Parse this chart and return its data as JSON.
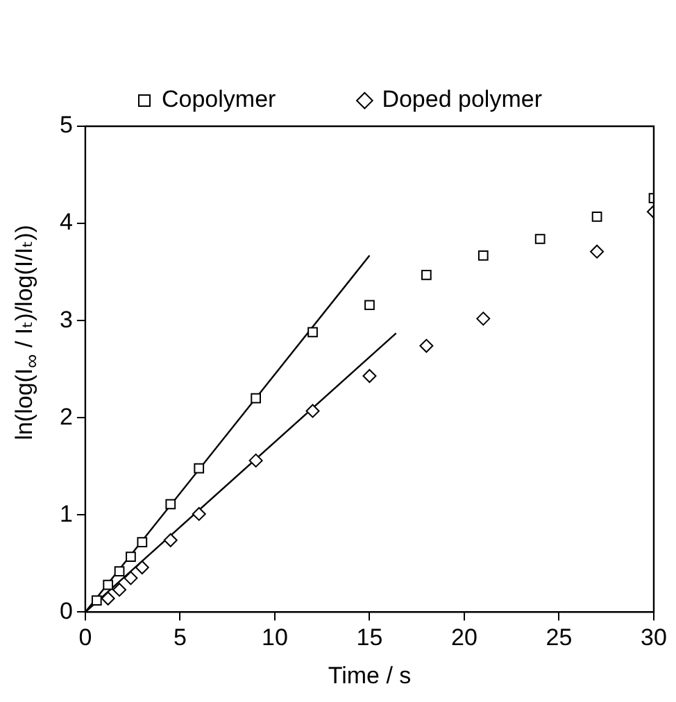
{
  "chart_data": {
    "type": "scatter",
    "xlabel": "Time / s",
    "ylabel": "ln(log(I$_{∞}$ / Iₜ)/log(I/Iₜ))",
    "xlim": [
      0,
      30
    ],
    "ylim": [
      0,
      5
    ],
    "xticks": [
      0,
      5,
      10,
      15,
      20,
      25,
      30
    ],
    "yticks": [
      0,
      1,
      2,
      3,
      4,
      5
    ],
    "legend": "top",
    "series": [
      {
        "name": "Copolymer",
        "color": "#000000",
        "marker": "square",
        "x": [
          0.6,
          1.2,
          1.8,
          2.4,
          3.0,
          4.5,
          6.0,
          9,
          12,
          15,
          18,
          21,
          24,
          27,
          30
        ],
        "values": [
          0.12,
          0.28,
          0.42,
          0.57,
          0.72,
          1.11,
          1.48,
          2.2,
          2.88,
          3.16,
          3.47,
          3.67,
          3.84,
          4.07,
          4.26
        ]
      },
      {
        "name": "Doped polymer",
        "color": "#000000",
        "marker": "diamond",
        "x": [
          1.2,
          1.8,
          2.4,
          3.0,
          4.5,
          6.0,
          9,
          12,
          15,
          18,
          21,
          27,
          30
        ],
        "values": [
          0.14,
          0.23,
          0.35,
          0.46,
          0.74,
          1.01,
          1.56,
          2.07,
          2.43,
          2.74,
          3.02,
          3.71,
          4.12
        ]
      },
      {
        "type": "line",
        "color": "#000000",
        "marker": "none",
        "x": [
          0,
          15
        ],
        "values": [
          0,
          3.67
        ]
      },
      {
        "type": "line",
        "color": "#000000",
        "marker": "none",
        "x": [
          0,
          16.4
        ],
        "values": [
          0,
          2.87
        ]
      }
    ]
  }
}
